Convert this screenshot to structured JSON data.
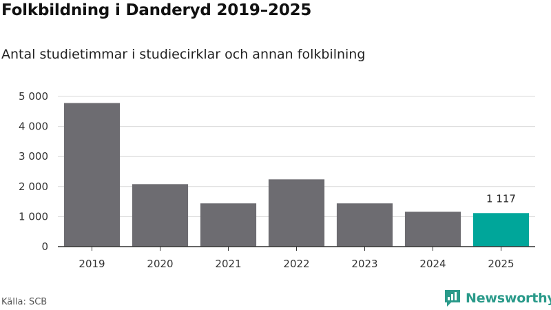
{
  "header": {
    "title": "Folkbildning i Danderyd 2019–2025",
    "subtitle": "Antal studietimmar i studiecirklar och annan folkbilning"
  },
  "footer": {
    "source": "Källa: SCB",
    "brand": "Newsworthy",
    "brand_icon": "newsworthy-logo-icon"
  },
  "colors": {
    "bar": "#6d6c71",
    "highlight": "#00a69a",
    "grid": "#d9d9d9",
    "axis": "#333333",
    "brand": "#2a9a8a"
  },
  "chart_data": {
    "type": "bar",
    "title": "Folkbildning i Danderyd 2019–2025",
    "subtitle": "Antal studietimmar i studiecirklar och annan folkbilning",
    "xlabel": "",
    "ylabel": "",
    "categories": [
      "2019",
      "2020",
      "2021",
      "2022",
      "2023",
      "2024",
      "2025"
    ],
    "values": [
      4780,
      2080,
      1440,
      2240,
      1440,
      1160,
      1117
    ],
    "highlight_index": 6,
    "data_labels": [
      {
        "index": 6,
        "text": "1 117"
      }
    ],
    "ylim": [
      0,
      5000
    ],
    "yticks": [
      0,
      1000,
      2000,
      3000,
      4000,
      5000
    ],
    "ytick_labels": [
      "0",
      "1 000",
      "2 000",
      "3 000",
      "4 000",
      "5 000"
    ],
    "grid": true,
    "legend": "none"
  }
}
